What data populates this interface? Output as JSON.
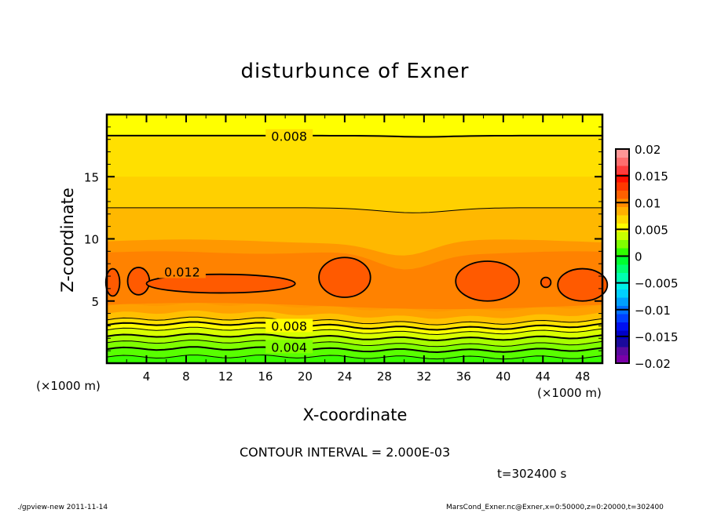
{
  "title": "disturbunce of Exner",
  "footer": {
    "left": "./gpview-new   2011-11-14",
    "right": "MarsCond_Exner.nc@Exner,x=0:50000,z=0:20000,t=302400"
  },
  "contour_interval": "CONTOUR INTERVAL = 2.000E-03",
  "time_label": "t=302400 s",
  "chart_data": {
    "type": "heatmap",
    "title": "disturbunce of Exner",
    "xlabel": "X-coordinate",
    "ylabel": "Z-coordinate",
    "x_unit_label": "(×1000 m)",
    "y_unit_label": "(×1000 m)",
    "xlim": [
      0,
      50
    ],
    "ylim": [
      0,
      20
    ],
    "xticks": [
      4,
      8,
      12,
      16,
      20,
      24,
      28,
      32,
      36,
      40,
      44,
      48
    ],
    "xtick_labels": [
      "4",
      "8",
      "12",
      "16",
      "20",
      "24",
      "28",
      "32",
      "36",
      "40",
      "44",
      "48"
    ],
    "yticks": [
      5,
      10,
      15
    ],
    "ytick_labels": [
      "5",
      "10",
      "15"
    ],
    "contour_labels": [
      "0.008",
      "0.012",
      "0.008",
      "0.004"
    ],
    "colorbar": {
      "range": [
        -0.02,
        0.02
      ],
      "step": 0.002,
      "tick_values": [
        0.02,
        0.015,
        0.01,
        0.005,
        0,
        -0.005,
        -0.01,
        -0.015,
        -0.02
      ],
      "tick_labels": [
        "0.02",
        "0.015",
        "0.01",
        "0.005",
        "0",
        "−0.005",
        "−0.01",
        "−0.015",
        "−0.02"
      ],
      "colors": [
        "#7a00a8",
        "#5a0aa0",
        "#1a0a9c",
        "#0000c8",
        "#0010f0",
        "#0040ff",
        "#0070ff",
        "#00a0ff",
        "#00d0ff",
        "#00f0e8",
        "#00ffb0",
        "#00ff70",
        "#00ff30",
        "#30ff00",
        "#80ff00",
        "#c8ff00",
        "#ffff00",
        "#ffd800",
        "#ffb000",
        "#ff8c00"
      ],
      "colors_top": [
        "#ff6000",
        "#ff3800",
        "#ff1000",
        "#ff3c3c",
        "#ff6e6e",
        "#ff9696"
      ]
    },
    "levels_note": "filled bands at 0.002 intervals",
    "bands": [
      {
        "value": 0.001,
        "color": "#40ff00"
      },
      {
        "value": 0.002,
        "color": "#60ff00"
      },
      {
        "value": 0.003,
        "color": "#80ff00"
      },
      {
        "value": 0.004,
        "color": "#a0ff00"
      },
      {
        "value": 0.005,
        "color": "#c8ff00"
      },
      {
        "value": 0.006,
        "color": "#e8ff00"
      },
      {
        "value": 0.007,
        "color": "#ffff00"
      },
      {
        "value": 0.008,
        "color": "#ffe000"
      },
      {
        "value": 0.009,
        "color": "#ffd000"
      },
      {
        "value": 0.01,
        "color": "#ffb800"
      },
      {
        "value": 0.011,
        "color": "#ff9800"
      },
      {
        "value": 0.012,
        "color": "#ff7a00"
      },
      {
        "value": 0.013,
        "color": "#ff5a00"
      }
    ]
  }
}
